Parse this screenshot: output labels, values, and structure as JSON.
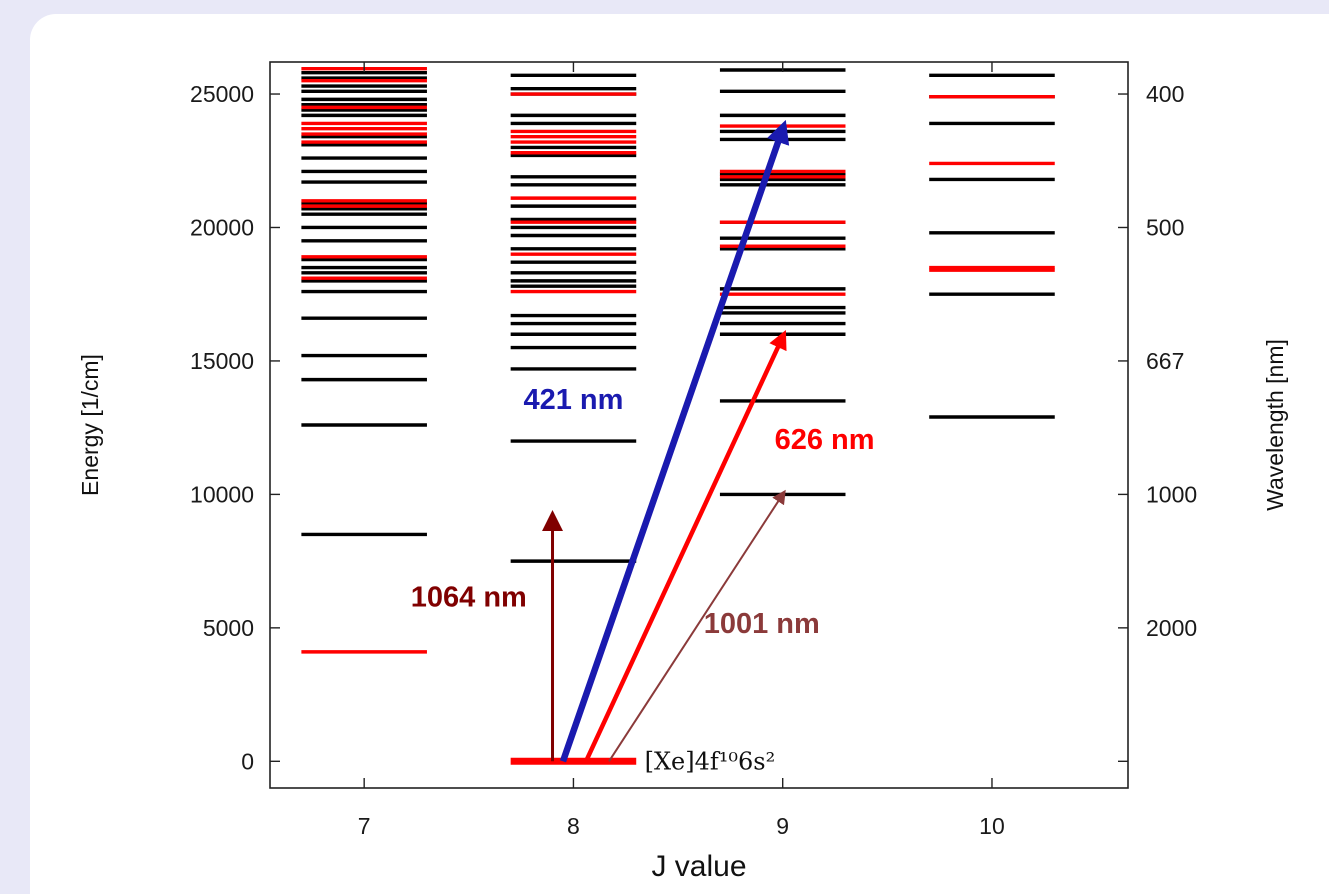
{
  "chart_data": {
    "type": "energy-level diagram",
    "xlabel": "J value",
    "ylabel": "Energy [1/cm]",
    "y2label": "Wavelength [nm]",
    "xlim": [
      6.55,
      10.65
    ],
    "ylim": [
      -1000,
      26200
    ],
    "xticks": [
      7,
      8,
      9,
      10
    ],
    "xtick_labels": [
      "7",
      "8",
      "9",
      "10"
    ],
    "yticks": [
      0,
      5000,
      10000,
      15000,
      20000,
      25000
    ],
    "ytick_labels": [
      "0",
      "5000",
      "10000",
      "15000",
      "20000",
      "25000"
    ],
    "y2ticks": [
      {
        "energy": 25000,
        "label": "400"
      },
      {
        "energy": 20000,
        "label": "500"
      },
      {
        "energy": 15000,
        "label": "667"
      },
      {
        "energy": 10000,
        "label": "1000"
      },
      {
        "energy": 5000,
        "label": "2000"
      }
    ],
    "level_half_width": 0.3,
    "colors": {
      "odd_parity": "#ff0000",
      "even_parity": "#000000",
      "blue": "#1a1aaf",
      "dark_red": "#800000",
      "brown": "#8b3a3a"
    },
    "levels": [
      {
        "J": 7,
        "color": "black",
        "energies": [
          8500,
          12600,
          14300,
          15200,
          16600,
          17600,
          18000,
          18300,
          18500,
          18800,
          19500,
          20000,
          20500,
          20700,
          20900,
          21700,
          22100,
          22600,
          23100,
          23400,
          24200,
          24400,
          24600,
          24800,
          25100,
          25300,
          25600,
          25800
        ]
      },
      {
        "J": 7,
        "color": "red",
        "energies": [
          4100,
          18100,
          18900,
          20800,
          21000,
          23200,
          23500,
          23700,
          23900,
          24500,
          25500,
          25950
        ]
      },
      {
        "J": 8,
        "color": "black",
        "energies": [
          7500,
          12000,
          14700,
          15500,
          16000,
          16400,
          16700,
          17800,
          18000,
          18300,
          18700,
          19200,
          19700,
          20000,
          20300,
          20800,
          21600,
          21900,
          22700,
          23000,
          23900,
          24200,
          25000,
          25200,
          25700
        ]
      },
      {
        "J": 8,
        "color": "red",
        "energies": [
          0,
          17600,
          19000,
          20200,
          21100,
          22800,
          23200,
          23400,
          23600,
          25000
        ]
      },
      {
        "J": 9,
        "color": "black",
        "energies": [
          10000,
          13500,
          16000,
          16400,
          16800,
          17000,
          17700,
          19200,
          19600,
          20200,
          21600,
          21800,
          22000,
          23300,
          23600,
          24200,
          25100,
          25900
        ]
      },
      {
        "J": 9,
        "color": "red",
        "energies": [
          17500,
          19300,
          20200,
          21900,
          22100,
          23800
        ]
      },
      {
        "J": 10,
        "color": "black",
        "energies": [
          12900,
          17500,
          19800,
          21800,
          23900,
          24900,
          25700
        ]
      },
      {
        "J": 10,
        "color": "red",
        "energies": [
          18400,
          18500,
          22400,
          24900
        ]
      }
    ],
    "transitions": [
      {
        "label": "421 nm",
        "from": [
          7.95,
          0
        ],
        "to": [
          9.0,
          23700
        ],
        "color": "#1a1aaf",
        "width": 6.5,
        "label_pos": [
          8.0,
          13200
        ],
        "anchor": "middle"
      },
      {
        "label": "626 nm",
        "from": [
          8.06,
          0
        ],
        "to": [
          9.0,
          15900
        ],
        "color": "#ff0000",
        "width": 4.5,
        "label_pos": [
          9.2,
          11700
        ],
        "anchor": "middle"
      },
      {
        "label": "1001 nm",
        "from": [
          8.17,
          0
        ],
        "to": [
          9.0,
          10000
        ],
        "color": "#8b3a3a",
        "width": 2,
        "label_pos": [
          8.9,
          4800
        ],
        "anchor": "middle"
      },
      {
        "label": "1064 nm",
        "from": [
          7.9,
          0
        ],
        "to": [
          7.9,
          9100
        ],
        "color": "#800000",
        "width": 3,
        "label_pos": [
          7.5,
          5800
        ],
        "anchor": "middle"
      }
    ],
    "ground_state_label": "[Xe]4f¹⁰6s²",
    "grid": false,
    "legend": "none"
  }
}
